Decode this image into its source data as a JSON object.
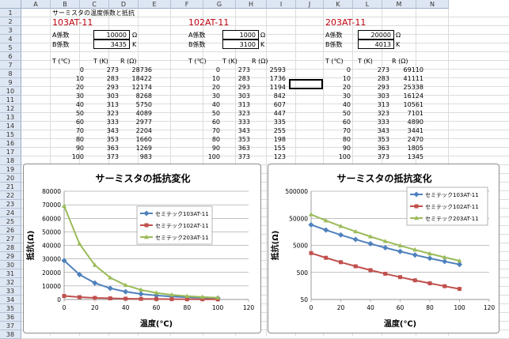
{
  "columns": [
    "A",
    "B",
    "C",
    "D",
    "E",
    "F",
    "G",
    "H",
    "I",
    "J",
    "K",
    "L",
    "M",
    "N"
  ],
  "rows": [
    "1",
    "2",
    "3",
    "4",
    "5",
    "6",
    "7",
    "8",
    "9",
    "10",
    "11",
    "12",
    "13",
    "14",
    "15",
    "16",
    "17",
    "18",
    "19",
    "20",
    "21",
    "22",
    "23",
    "24",
    "25",
    "26",
    "27",
    "28",
    "29",
    "30",
    "31",
    "32",
    "33",
    "34",
    "35",
    "36",
    "37",
    "38"
  ],
  "sheet_title": "サーミスタの温度係数と抵抗",
  "thermistors": [
    {
      "name": "103AT-11",
      "a_label": "A係数",
      "a_value": "10000",
      "a_unit": "Ω",
      "b_label": "B係数",
      "b_value": "3435",
      "b_unit": "K",
      "headers": [
        "T (℃)",
        "T (K)",
        "R (Ω)"
      ],
      "rows": [
        [
          "0",
          "273",
          "28736"
        ],
        [
          "10",
          "283",
          "18422"
        ],
        [
          "20",
          "293",
          "12174"
        ],
        [
          "30",
          "303",
          "8268"
        ],
        [
          "40",
          "313",
          "5750"
        ],
        [
          "50",
          "323",
          "4089"
        ],
        [
          "60",
          "333",
          "2977"
        ],
        [
          "70",
          "343",
          "2204"
        ],
        [
          "80",
          "353",
          "1660"
        ],
        [
          "90",
          "363",
          "1269"
        ],
        [
          "100",
          "373",
          "983"
        ]
      ]
    },
    {
      "name": "102AT-11",
      "a_label": "A係数",
      "a_value": "1000",
      "a_unit": "Ω",
      "b_label": "B係数",
      "b_value": "3100",
      "b_unit": "K",
      "headers": [
        "T (℃)",
        "T (K)",
        "R (Ω)"
      ],
      "rows": [
        [
          "0",
          "273",
          "2593"
        ],
        [
          "10",
          "283",
          "1736"
        ],
        [
          "20",
          "293",
          "1194"
        ],
        [
          "30",
          "303",
          "842"
        ],
        [
          "40",
          "313",
          "607"
        ],
        [
          "50",
          "323",
          "447"
        ],
        [
          "60",
          "333",
          "335"
        ],
        [
          "70",
          "343",
          "255"
        ],
        [
          "80",
          "353",
          "198"
        ],
        [
          "90",
          "363",
          "155"
        ],
        [
          "100",
          "373",
          "123"
        ]
      ]
    },
    {
      "name": "203AT-11",
      "a_label": "A係数",
      "a_value": "20000",
      "a_unit": "Ω",
      "b_label": "B係数",
      "b_value": "4013",
      "b_unit": "K",
      "headers": [
        "T (℃)",
        "T (K)",
        "R (Ω)"
      ],
      "rows": [
        [
          "0",
          "273",
          "69110"
        ],
        [
          "10",
          "283",
          "41111"
        ],
        [
          "20",
          "293",
          "25338"
        ],
        [
          "30",
          "303",
          "16124"
        ],
        [
          "40",
          "313",
          "10561"
        ],
        [
          "50",
          "323",
          "7101"
        ],
        [
          "60",
          "333",
          "4890"
        ],
        [
          "70",
          "343",
          "3441"
        ],
        [
          "80",
          "353",
          "2470"
        ],
        [
          "90",
          "363",
          "1805"
        ],
        [
          "100",
          "373",
          "1345"
        ]
      ]
    }
  ],
  "colors": {
    "series1": "#4f81bd",
    "series2": "#c0504d",
    "series3": "#9bbb59"
  },
  "chart_data": [
    {
      "type": "line",
      "title": "サーミスタの抵抗変化",
      "xlabel": "温度(℃)",
      "ylabel": "抵抗(Ω)",
      "xlim": [
        0,
        120
      ],
      "ylim": [
        0,
        80000
      ],
      "xticks": [
        "0",
        "20",
        "40",
        "60",
        "80",
        "100",
        "120"
      ],
      "yticks": [
        "0",
        "10000",
        "20000",
        "30000",
        "40000",
        "50000",
        "60000",
        "70000",
        "80000"
      ],
      "log_scale": false,
      "grid": true,
      "legend_position": "top-right",
      "x": [
        0,
        10,
        20,
        30,
        40,
        50,
        60,
        70,
        80,
        90,
        100
      ],
      "series": [
        {
          "name": "セミテック103AT-11",
          "values": [
            28736,
            18422,
            12174,
            8268,
            5750,
            4089,
            2977,
            2204,
            1660,
            1269,
            983
          ]
        },
        {
          "name": "セミテック102AT-11",
          "values": [
            2593,
            1736,
            1194,
            842,
            607,
            447,
            335,
            255,
            198,
            155,
            123
          ]
        },
        {
          "name": "セミテック203AT-11",
          "values": [
            69110,
            41111,
            25338,
            16124,
            10561,
            7101,
            4890,
            3441,
            2470,
            1805,
            1345
          ]
        }
      ]
    },
    {
      "type": "line",
      "title": "サーミスタの抵抗変化",
      "xlabel": "温度(℃)",
      "ylabel": "抵抗(Ω)",
      "xlim": [
        0,
        120
      ],
      "ylim": [
        50,
        500000
      ],
      "xticks": [
        "0",
        "20",
        "40",
        "60",
        "80",
        "100",
        "120"
      ],
      "yticks": [
        "50",
        "500",
        "5000",
        "50000",
        "500000"
      ],
      "log_scale": true,
      "grid": true,
      "legend_position": "top-right",
      "x": [
        0,
        10,
        20,
        30,
        40,
        50,
        60,
        70,
        80,
        90,
        100
      ],
      "series": [
        {
          "name": "セミテック103AT-11",
          "values": [
            28736,
            18422,
            12174,
            8268,
            5750,
            4089,
            2977,
            2204,
            1660,
            1269,
            983
          ]
        },
        {
          "name": "セミテック102AT-11",
          "values": [
            2593,
            1736,
            1194,
            842,
            607,
            447,
            335,
            255,
            198,
            155,
            123
          ]
        },
        {
          "name": "セミテック203AT-11",
          "values": [
            69110,
            41111,
            25338,
            16124,
            10561,
            7101,
            4890,
            3441,
            2470,
            1805,
            1345
          ]
        }
      ]
    }
  ]
}
